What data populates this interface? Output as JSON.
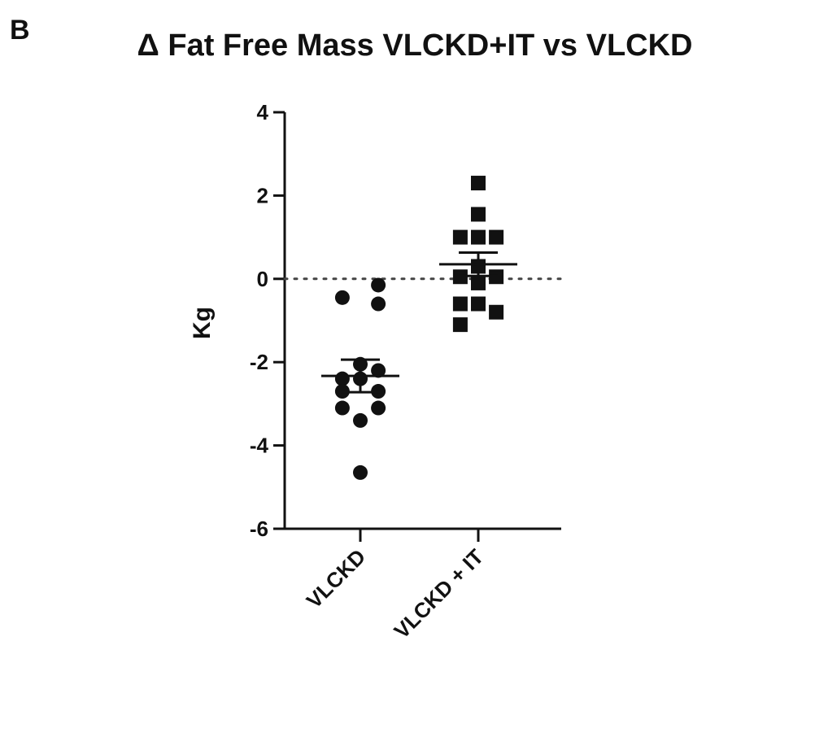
{
  "panel_label": "B",
  "chart_data": {
    "type": "scatter",
    "title": "Δ Fat Free Mass VLCKD+IT vs VLCKD",
    "ylabel": "Kg",
    "xlabel": "",
    "categories": [
      "VLCKD",
      "VLCKD + IT"
    ],
    "ylim": [
      -6,
      4
    ],
    "yticks": [
      4,
      2,
      0,
      -2,
      -4,
      -6
    ],
    "reference_line": {
      "y": 0,
      "style": "dotted"
    },
    "grid": false,
    "series": [
      {
        "category": "VLCKD",
        "marker": "circle",
        "points": [
          {
            "x": -0.65,
            "y": -0.45
          },
          {
            "x": 0.65,
            "y": -0.15
          },
          {
            "x": 0.65,
            "y": -0.6
          },
          {
            "x": 0.0,
            "y": -2.05
          },
          {
            "x": 0.65,
            "y": -2.2
          },
          {
            "x": -0.65,
            "y": -2.4
          },
          {
            "x": 0.0,
            "y": -2.4
          },
          {
            "x": -0.65,
            "y": -2.7
          },
          {
            "x": 0.65,
            "y": -2.7
          },
          {
            "x": -0.65,
            "y": -3.1
          },
          {
            "x": 0.65,
            "y": -3.1
          },
          {
            "x": 0.0,
            "y": -3.4
          },
          {
            "x": 0.0,
            "y": -4.65
          }
        ],
        "mean": -2.33,
        "error_upper": -1.94,
        "error_lower": -2.72
      },
      {
        "category": "VLCKD + IT",
        "marker": "square",
        "points": [
          {
            "x": 0.0,
            "y": 2.3
          },
          {
            "x": 0.0,
            "y": 1.55
          },
          {
            "x": -0.65,
            "y": 1.0
          },
          {
            "x": 0.0,
            "y": 1.0
          },
          {
            "x": 0.65,
            "y": 1.0
          },
          {
            "x": 0.0,
            "y": 0.3
          },
          {
            "x": -0.65,
            "y": 0.05
          },
          {
            "x": 0.65,
            "y": 0.05
          },
          {
            "x": 0.0,
            "y": -0.1
          },
          {
            "x": -0.65,
            "y": -0.6
          },
          {
            "x": 0.0,
            "y": -0.6
          },
          {
            "x": 0.65,
            "y": -0.8
          },
          {
            "x": -0.65,
            "y": -1.1
          }
        ],
        "mean": 0.35,
        "error_upper": 0.63,
        "error_lower": 0.07
      }
    ]
  }
}
